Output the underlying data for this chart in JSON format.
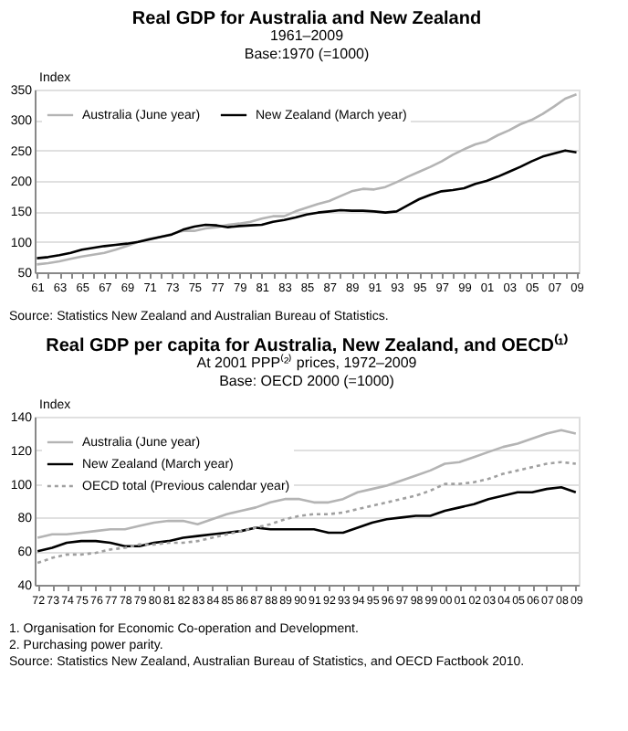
{
  "chart_data": [
    {
      "type": "line",
      "title": "Real GDP for Australia and New Zealand",
      "subtitle": "1961–2009\nBase:1970 (=1000)",
      "ylabel": "Index",
      "categories": [
        "61",
        null,
        "63",
        null,
        "65",
        null,
        "67",
        null,
        "69",
        null,
        "71",
        null,
        "73",
        null,
        "75",
        null,
        "77",
        null,
        "79",
        null,
        "81",
        null,
        "83",
        null,
        "85",
        null,
        "87",
        null,
        "89",
        null,
        "91",
        null,
        "93",
        null,
        "95",
        null,
        "97",
        null,
        "99",
        null,
        "01",
        null,
        "03",
        null,
        "05",
        null,
        "07",
        null,
        "09"
      ],
      "series": [
        {
          "name": "Australia (June year)",
          "color": "#b4b4b4",
          "line_style": "solid",
          "values": [
            63,
            65,
            68,
            72,
            76,
            79,
            82,
            87,
            93,
            100,
            105,
            108,
            113,
            118,
            118,
            122,
            124,
            128,
            130,
            133,
            138,
            142,
            142,
            150,
            156,
            162,
            167,
            175,
            183,
            187,
            186,
            190,
            198,
            207,
            215,
            223,
            232,
            243,
            252,
            260,
            265,
            275,
            283,
            293,
            300,
            310,
            322,
            335,
            342
          ]
        },
        {
          "name": "New Zealand (March year)",
          "color": "#000000",
          "line_style": "solid",
          "values": [
            73,
            75,
            78,
            82,
            87,
            90,
            93,
            95,
            97,
            100,
            104,
            108,
            112,
            120,
            125,
            128,
            127,
            124,
            126,
            127,
            128,
            133,
            136,
            140,
            145,
            148,
            150,
            152,
            151,
            151,
            150,
            148,
            150,
            160,
            170,
            177,
            183,
            185,
            188,
            195,
            200,
            207,
            215,
            223,
            232,
            240,
            245,
            250,
            247
          ]
        }
      ],
      "ylim": [
        50,
        350
      ],
      "yticks": [
        50,
        100,
        150,
        200,
        250,
        300,
        350
      ],
      "grid": "y",
      "legend": "top left",
      "annotations": [
        "Source: Statistics New Zealand and  Australian Bureau of Statistics."
      ]
    },
    {
      "type": "line",
      "title": "Real GDP per capita for Australia, New Zealand, and OECD⁽¹⁾",
      "subtitle": "At 2001 PPP⁽²⁾ prices, 1972–2009\nBase: OECD 2000 (=1000)",
      "ylabel": "Index",
      "categories": [
        "72",
        "73",
        "74",
        "75",
        "76",
        "77",
        "78",
        "79",
        "80",
        "81",
        "82",
        "83",
        "84",
        "85",
        "86",
        "87",
        "88",
        "89",
        "90",
        "91",
        "92",
        "93",
        "94",
        "95",
        "96",
        "97",
        "98",
        "99",
        "00",
        "01",
        "02",
        "03",
        "04",
        "05",
        "06",
        "07",
        "08",
        "09"
      ],
      "series": [
        {
          "name": "Australia (June year)",
          "color": "#b4b4b4",
          "line_style": "solid",
          "values": [
            68,
            70,
            70,
            71,
            72,
            73,
            73,
            75,
            77,
            78,
            78,
            76,
            79,
            82,
            84,
            86,
            89,
            91,
            91,
            89,
            89,
            91,
            95,
            97,
            99,
            102,
            105,
            108,
            112,
            113,
            116,
            119,
            122,
            124,
            127,
            130,
            132,
            130
          ]
        },
        {
          "name": "New Zealand (March year)",
          "color": "#000000",
          "line_style": "solid",
          "values": [
            60,
            62,
            65,
            66,
            66,
            65,
            63,
            63,
            65,
            66,
            68,
            69,
            70,
            71,
            72,
            74,
            73,
            73,
            73,
            73,
            71,
            71,
            74,
            77,
            79,
            80,
            81,
            81,
            84,
            86,
            88,
            91,
            93,
            95,
            95,
            97,
            98,
            95
          ]
        },
        {
          "name": "OECD total (Previous calendar year)",
          "color": "#a0a0a0",
          "line_style": "dotted",
          "values": [
            53,
            56,
            58,
            58,
            59,
            61,
            62,
            64,
            64,
            65,
            65,
            66,
            68,
            70,
            72,
            74,
            76,
            79,
            81,
            82,
            82,
            83,
            85,
            87,
            89,
            91,
            93,
            96,
            100,
            100,
            101,
            103,
            106,
            108,
            110,
            112,
            113,
            112
          ]
        }
      ],
      "ylim": [
        40,
        140
      ],
      "yticks": [
        40,
        60,
        80,
        100,
        120,
        140
      ],
      "grid": "y",
      "legend": "top left",
      "annotations": [
        "1. Organisation for Economic Co-operation and Development.",
        "2. Purchasing power parity.",
        "Source: Statistics New Zealand, Australian Bureau of Statistics, and OECD Factbook 2010."
      ]
    }
  ]
}
